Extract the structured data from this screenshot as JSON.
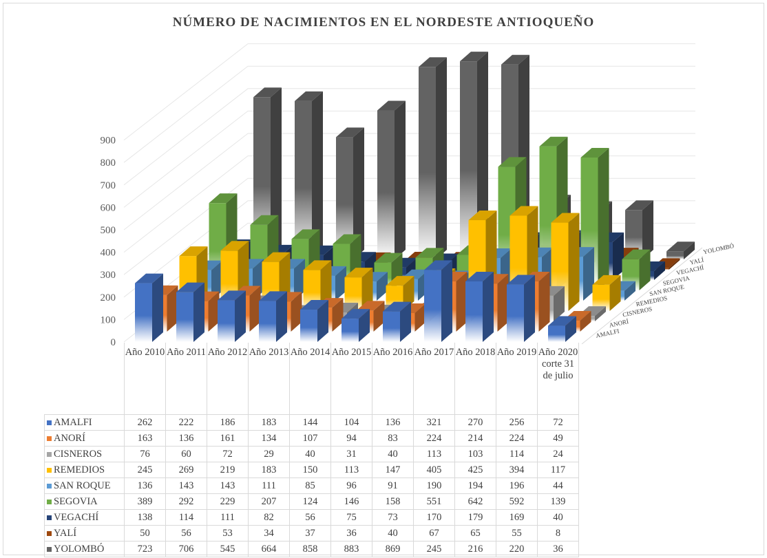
{
  "chart_data": {
    "type": "bar",
    "title": "NÚMERO DE NACIMIENTOS EN EL NORDESTE ANTIOQUEÑO",
    "categories": [
      "Año 2010",
      "Año 2011",
      "Año 2012",
      "Año 2013",
      "Año 2014",
      "Año 2015",
      "Año 2016",
      "Año 2017",
      "Año 2018",
      "Año 2019",
      "Año 2020 corte 31 de julio"
    ],
    "yticks": [
      "0",
      "100",
      "200",
      "300",
      "400",
      "500",
      "600",
      "700",
      "800",
      "900"
    ],
    "ylim": [
      0,
      900
    ],
    "grid": true,
    "legend": "table-bottom",
    "series": [
      {
        "name": "AMALFI",
        "color": "#4472c4",
        "values": [
          262,
          222,
          186,
          183,
          144,
          104,
          136,
          321,
          270,
          256,
          72
        ]
      },
      {
        "name": "ANORÍ",
        "color": "#ed7d31",
        "values": [
          163,
          136,
          161,
          134,
          107,
          94,
          83,
          224,
          214,
          224,
          49
        ]
      },
      {
        "name": "CISNEROS",
        "color": "#a5a5a5",
        "values": [
          76,
          60,
          72,
          29,
          40,
          31,
          40,
          113,
          103,
          114,
          24
        ]
      },
      {
        "name": "REMEDIOS",
        "color": "#ffc000",
        "values": [
          245,
          269,
          219,
          183,
          150,
          113,
          147,
          405,
          425,
          394,
          117
        ]
      },
      {
        "name": "SAN ROQUE",
        "color": "#5b9bd5",
        "values": [
          136,
          143,
          143,
          111,
          85,
          96,
          91,
          190,
          194,
          196,
          44
        ]
      },
      {
        "name": "SEGOVIA",
        "color": "#70ad47",
        "values": [
          389,
          292,
          229,
          207,
          124,
          146,
          158,
          551,
          642,
          592,
          139
        ]
      },
      {
        "name": "VEGACHÍ",
        "color": "#264478",
        "values": [
          138,
          114,
          111,
          82,
          56,
          75,
          73,
          170,
          179,
          169,
          40
        ]
      },
      {
        "name": "YALÍ",
        "color": "#9e480e",
        "values": [
          50,
          56,
          53,
          34,
          37,
          36,
          40,
          67,
          65,
          55,
          8
        ]
      },
      {
        "name": "YOLOMBÓ",
        "color": "#636363",
        "values": [
          723,
          706,
          545,
          664,
          858,
          883,
          869,
          245,
          216,
          220,
          36
        ]
      }
    ]
  }
}
